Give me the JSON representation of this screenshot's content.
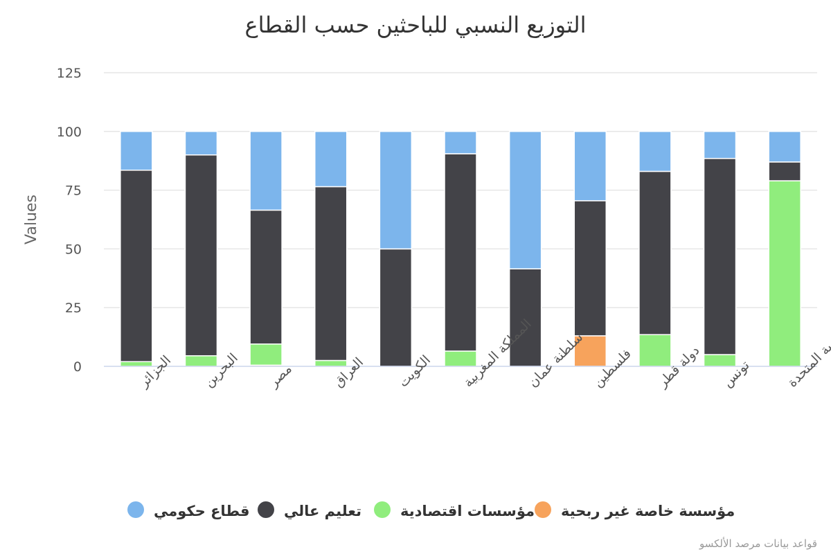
{
  "chart_data": {
    "type": "bar",
    "stacked": true,
    "title": "التوزيع النسبي للباحثين حسب القطاع",
    "ylabel": "Values",
    "xlabel": "",
    "ylim": [
      0,
      125
    ],
    "yticks": [
      0,
      25,
      50,
      75,
      100,
      125
    ],
    "grid": true,
    "legend_position": "bottom",
    "credit": "قواعد بيانات مرصد الألكسو",
    "categories": [
      "الجزائر",
      "البحرين",
      "مصر",
      "العراق",
      "الكويت",
      "المملكة المغربية",
      "سلطنة عمان",
      "فلسطين",
      "دولة قطر",
      "تونس",
      "الإمارات العربية المتحدة"
    ],
    "series": [
      {
        "name": "مؤسسة خاصة غير ربحية",
        "color": "#f7a35c",
        "values": [
          0,
          0,
          0.5,
          0,
          0,
          0,
          0,
          13,
          0,
          0,
          0
        ]
      },
      {
        "name": "مؤسسات اقتصادية",
        "color": "#90ed7d",
        "values": [
          2,
          4.5,
          9,
          2.5,
          0,
          6.5,
          0,
          0,
          13.5,
          5,
          79
        ]
      },
      {
        "name": "تعليم عالي",
        "color": "#434348",
        "values": [
          81.5,
          85.5,
          57,
          74,
          50,
          84,
          41.5,
          57.5,
          69.5,
          83.5,
          8
        ]
      },
      {
        "name": "قطاع حكومي",
        "color": "#7cb5ec",
        "values": [
          16.5,
          10,
          33.5,
          23.5,
          50,
          9.5,
          58.5,
          29.5,
          17,
          11.5,
          13
        ]
      }
    ]
  }
}
